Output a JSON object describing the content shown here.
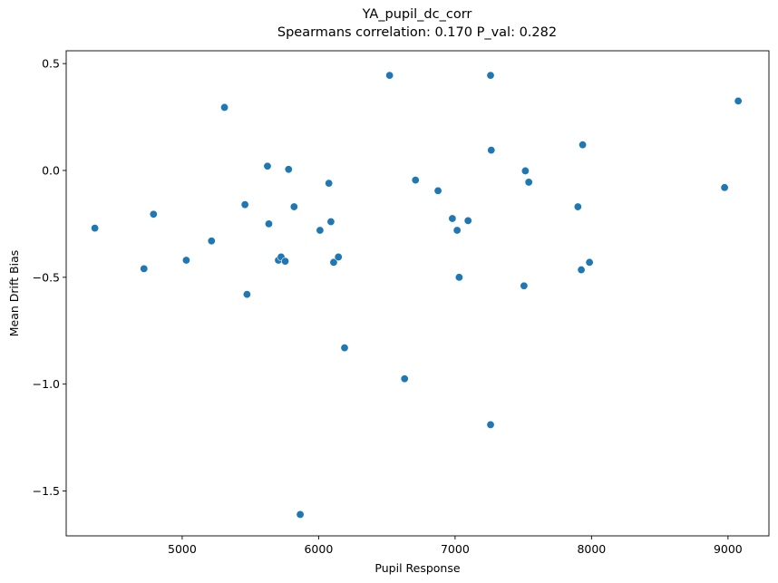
{
  "chart_data": {
    "type": "scatter",
    "title": "YA_pupil_dc_corr",
    "subtitle": "Spearmans correlation: 0.170 P_val: 0.282",
    "xlabel": "Pupil Response",
    "ylabel": "Mean Drift Bias",
    "xlim": [
      4150,
      9300
    ],
    "ylim": [
      -1.71,
      0.56
    ],
    "xticks": [
      5000,
      6000,
      7000,
      8000,
      9000
    ],
    "xtick_labels": [
      "5000",
      "6000",
      "7000",
      "8000",
      "9000"
    ],
    "yticks": [
      -1.5,
      -1.0,
      -0.5,
      0.0,
      0.5
    ],
    "ytick_labels": [
      "−1.5",
      "−1.0",
      "−0.5",
      "0.0",
      "0.5"
    ],
    "grid": false,
    "marker_color": "#1f77b4",
    "points": [
      {
        "x": 4360,
        "y": -0.27
      },
      {
        "x": 4720,
        "y": -0.46
      },
      {
        "x": 4790,
        "y": -0.205
      },
      {
        "x": 5030,
        "y": -0.42
      },
      {
        "x": 5215,
        "y": -0.33
      },
      {
        "x": 5310,
        "y": 0.295
      },
      {
        "x": 5460,
        "y": -0.16
      },
      {
        "x": 5475,
        "y": -0.58
      },
      {
        "x": 5625,
        "y": 0.02
      },
      {
        "x": 5635,
        "y": -0.25
      },
      {
        "x": 5705,
        "y": -0.42
      },
      {
        "x": 5725,
        "y": -0.405
      },
      {
        "x": 5755,
        "y": -0.425
      },
      {
        "x": 5780,
        "y": 0.005
      },
      {
        "x": 5820,
        "y": -0.17
      },
      {
        "x": 5865,
        "y": -1.61
      },
      {
        "x": 6010,
        "y": -0.28
      },
      {
        "x": 6075,
        "y": -0.06
      },
      {
        "x": 6090,
        "y": -0.24
      },
      {
        "x": 6110,
        "y": -0.43
      },
      {
        "x": 6145,
        "y": -0.405
      },
      {
        "x": 6190,
        "y": -0.83
      },
      {
        "x": 6520,
        "y": 0.445
      },
      {
        "x": 6630,
        "y": -0.975
      },
      {
        "x": 6710,
        "y": -0.045
      },
      {
        "x": 6875,
        "y": -0.095
      },
      {
        "x": 6980,
        "y": -0.225
      },
      {
        "x": 7015,
        "y": -0.28
      },
      {
        "x": 7030,
        "y": -0.5
      },
      {
        "x": 7095,
        "y": -0.235
      },
      {
        "x": 7260,
        "y": 0.445
      },
      {
        "x": 7265,
        "y": 0.095
      },
      {
        "x": 7260,
        "y": -1.19
      },
      {
        "x": 7505,
        "y": -0.54
      },
      {
        "x": 7515,
        "y": -0.002
      },
      {
        "x": 7540,
        "y": -0.055
      },
      {
        "x": 7900,
        "y": -0.17
      },
      {
        "x": 7925,
        "y": -0.465
      },
      {
        "x": 7935,
        "y": 0.12
      },
      {
        "x": 7985,
        "y": -0.43
      },
      {
        "x": 8975,
        "y": -0.08
      },
      {
        "x": 9075,
        "y": 0.325
      }
    ]
  }
}
